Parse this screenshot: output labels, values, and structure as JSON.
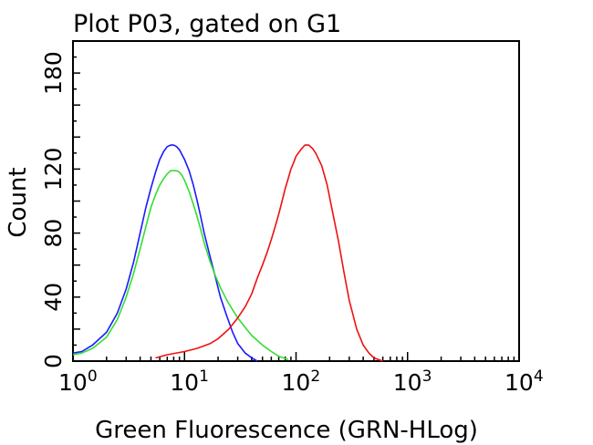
{
  "chart_data": {
    "type": "line",
    "title": "Plot P03, gated on G1",
    "xlabel": "Green Fluorescence (GRN-HLog)",
    "ylabel": "Count",
    "x_scale": "log",
    "xlim": [
      1,
      10000
    ],
    "ylim": [
      0,
      200
    ],
    "x_ticks": [
      {
        "value": 1,
        "base": "10",
        "exp": "0"
      },
      {
        "value": 10,
        "base": "10",
        "exp": "1"
      },
      {
        "value": 100,
        "base": "10",
        "exp": "2"
      },
      {
        "value": 1000,
        "base": "10",
        "exp": "3"
      },
      {
        "value": 10000,
        "base": "10",
        "exp": "4"
      }
    ],
    "y_ticks": [
      {
        "value": 0,
        "label": "0"
      },
      {
        "value": 40,
        "label": "40"
      },
      {
        "value": 80,
        "label": "80"
      },
      {
        "value": 120,
        "label": "120"
      },
      {
        "value": 180,
        "label": "180"
      }
    ],
    "series": [
      {
        "color": "#1a1aff",
        "x": [
          1,
          1.2,
          1.5,
          2,
          2.5,
          3,
          3.5,
          4,
          4.5,
          5,
          5.5,
          6,
          6.5,
          7,
          7.5,
          8,
          8.5,
          9,
          9.5,
          10,
          11,
          12,
          13,
          14,
          15,
          17,
          19,
          21,
          24,
          27,
          30,
          35,
          40,
          45
        ],
        "y": [
          5,
          6,
          10,
          18,
          30,
          45,
          62,
          80,
          96,
          108,
          118,
          126,
          131,
          134,
          135,
          135,
          134,
          132,
          129,
          126,
          119,
          110,
          100,
          90,
          80,
          65,
          52,
          40,
          28,
          18,
          11,
          5,
          2,
          0
        ]
      },
      {
        "color": "#33dd33",
        "x": [
          1,
          1.2,
          1.5,
          2,
          2.5,
          3,
          3.5,
          4,
          4.5,
          5,
          5.5,
          6,
          6.5,
          7,
          7.5,
          8,
          8.5,
          9,
          9.5,
          10,
          11,
          12,
          13,
          14,
          15,
          17,
          19,
          21,
          24,
          27,
          30,
          35,
          40,
          50,
          60,
          70,
          85
        ],
        "y": [
          4,
          5,
          8,
          15,
          26,
          40,
          55,
          70,
          84,
          96,
          104,
          110,
          114,
          117,
          119,
          119,
          119,
          118,
          116,
          113,
          106,
          98,
          90,
          82,
          74,
          62,
          53,
          46,
          38,
          32,
          27,
          21,
          16,
          10,
          6,
          3,
          1
        ]
      },
      {
        "color": "#ee1111",
        "x": [
          5.5,
          7,
          10,
          13,
          17,
          20,
          25,
          30,
          35,
          40,
          45,
          50,
          55,
          60,
          65,
          70,
          75,
          80,
          85,
          90,
          95,
          100,
          110,
          120,
          130,
          140,
          150,
          170,
          190,
          210,
          240,
          270,
          300,
          350,
          400,
          450,
          500,
          600
        ],
        "y": [
          2,
          4,
          6,
          8,
          11,
          14,
          20,
          27,
          34,
          42,
          52,
          60,
          68,
          76,
          84,
          92,
          100,
          108,
          114,
          120,
          124,
          128,
          132,
          135,
          135,
          133,
          130,
          122,
          110,
          95,
          75,
          55,
          38,
          20,
          10,
          5,
          2,
          0
        ]
      }
    ]
  }
}
